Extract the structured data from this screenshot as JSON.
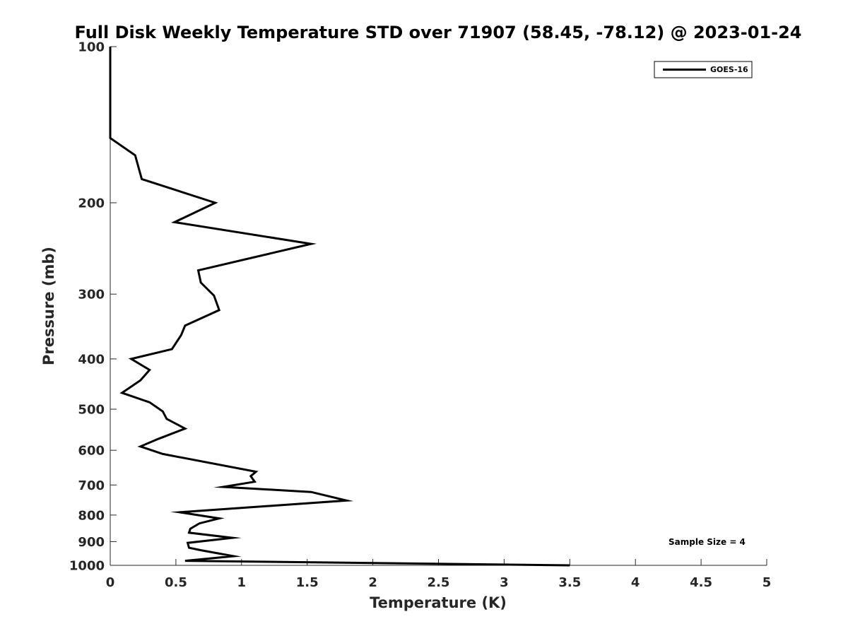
{
  "chart_data": {
    "type": "line",
    "title": "Full Disk Weekly Temperature STD over 71907 (58.45, -78.12) @ 2023-01-24",
    "xlabel": "Temperature (K)",
    "ylabel": "Pressure (mb)",
    "xlim": [
      0,
      5
    ],
    "ylim": [
      100,
      1000
    ],
    "y_scale": "log",
    "y_reversed": true,
    "grid": false,
    "legend_position": "top-right",
    "x_ticks": [
      "0",
      "0.5",
      "1",
      "1.5",
      "2",
      "2.5",
      "3",
      "3.5",
      "4",
      "4.5",
      "5"
    ],
    "y_ticks": [
      "100",
      "200",
      "300",
      "400",
      "500",
      "600",
      "700",
      "800",
      "900",
      "1000"
    ],
    "series": [
      {
        "name": "GOES-16",
        "color": "#000000",
        "points": [
          [
            0.0,
            100
          ],
          [
            0.0,
            115
          ],
          [
            0.0,
            135
          ],
          [
            0.0,
            150
          ],
          [
            0.19,
            162
          ],
          [
            0.24,
            180
          ],
          [
            0.8,
            200
          ],
          [
            0.49,
            218
          ],
          [
            1.53,
            240
          ],
          [
            0.67,
            270
          ],
          [
            0.69,
            285
          ],
          [
            0.79,
            302
          ],
          [
            0.83,
            322
          ],
          [
            0.57,
            345
          ],
          [
            0.54,
            360
          ],
          [
            0.47,
            383
          ],
          [
            0.16,
            400
          ],
          [
            0.3,
            420
          ],
          [
            0.23,
            440
          ],
          [
            0.09,
            465
          ],
          [
            0.3,
            485
          ],
          [
            0.4,
            505
          ],
          [
            0.43,
            522
          ],
          [
            0.57,
            545
          ],
          [
            0.37,
            570
          ],
          [
            0.23,
            590
          ],
          [
            0.4,
            610
          ],
          [
            1.11,
            660
          ],
          [
            1.07,
            673
          ],
          [
            1.1,
            690
          ],
          [
            0.86,
            706
          ],
          [
            1.53,
            722
          ],
          [
            1.8,
            750
          ],
          [
            0.53,
            790
          ],
          [
            0.83,
            812
          ],
          [
            0.68,
            830
          ],
          [
            0.61,
            850
          ],
          [
            0.6,
            865
          ],
          [
            0.93,
            885
          ],
          [
            0.59,
            905
          ],
          [
            0.6,
            925
          ],
          [
            0.69,
            935
          ],
          [
            0.94,
            960
          ],
          [
            0.57,
            980
          ],
          [
            3.5,
            1000
          ]
        ]
      }
    ],
    "annotations": [
      "Sample Size = 4"
    ]
  }
}
